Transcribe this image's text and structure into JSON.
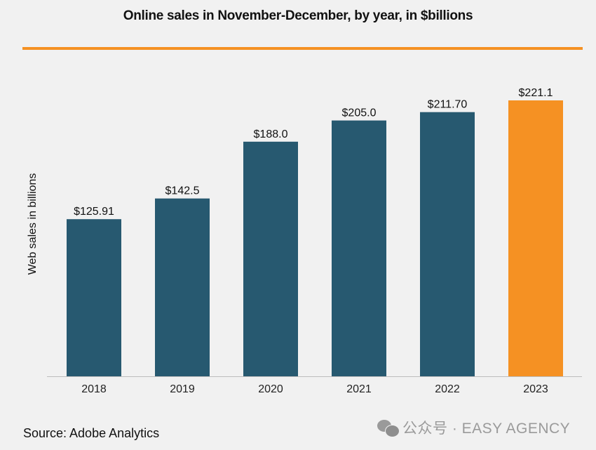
{
  "chart_data": {
    "type": "bar",
    "title": "Online sales in November-December, by year, in $billions",
    "xlabel": "",
    "ylabel": "Web sales in billions",
    "categories": [
      "2018",
      "2019",
      "2020",
      "2021",
      "2022",
      "2023"
    ],
    "values": [
      125.91,
      142.5,
      188.0,
      205.0,
      211.7,
      221.1
    ],
    "data_labels": [
      "$125.91",
      "$142.5",
      "$188.0",
      "$205.0",
      "$211.70",
      "$221.1"
    ],
    "ylim": [
      0,
      221.1
    ],
    "grid": false,
    "colors": {
      "default": "#275970",
      "highlight": "#f59123",
      "highlight_index": 5
    }
  },
  "source": "Source:  Adobe Analytics",
  "watermark": "公众号 · EASY AGENCY",
  "colors": {
    "rule": "#f59123",
    "background": "#f1f1f1"
  }
}
